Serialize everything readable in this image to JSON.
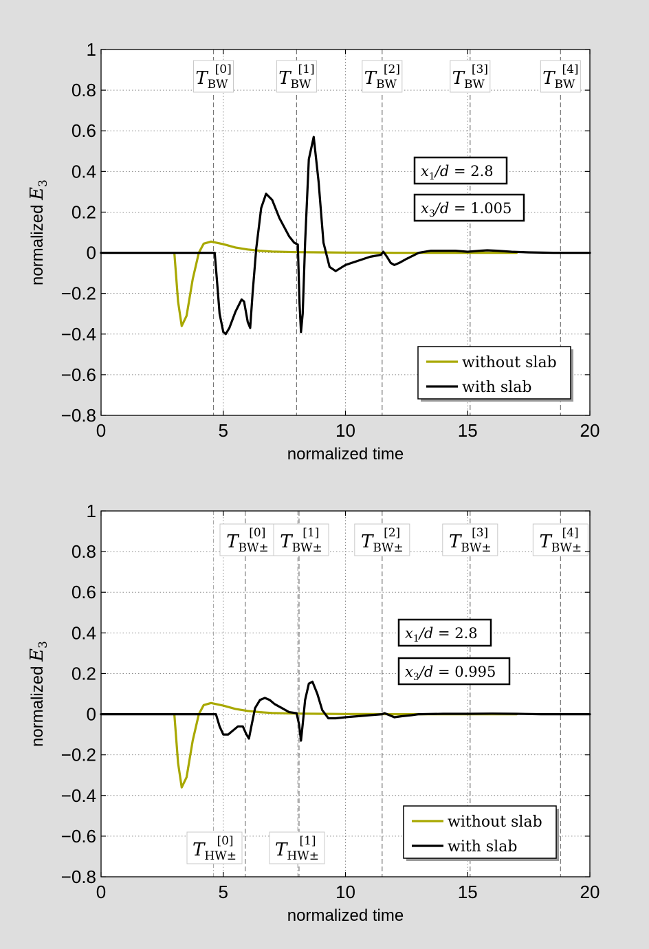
{
  "colors": {
    "background": "#dedede",
    "axes_background": "#ffffff",
    "without_slab": "#a8a800",
    "with_slab": "#000000"
  },
  "chart_data": [
    {
      "type": "line",
      "xlabel": "normalized time",
      "ylabel": "normalized E3",
      "xlim": [
        0,
        20
      ],
      "ylim": [
        -0.8,
        1
      ],
      "xticks": [
        "0",
        "5",
        "10",
        "15",
        "20"
      ],
      "yticks": [
        "1",
        "0.8",
        "0.6",
        "0.4",
        "0.2",
        "0",
        "−0.2",
        "−0.4",
        "−0.6",
        "−0.8"
      ],
      "grid": true,
      "legend_position": "bottom-right",
      "annotations": [
        "x1/d = 2.8",
        "x3/d = 1.005"
      ],
      "markers": [
        {
          "label": "T_BW^[0]",
          "x": 4.6
        },
        {
          "label": "T_BW^[1]",
          "x": 8.0
        },
        {
          "label": "T_BW^[2]",
          "x": 11.5
        },
        {
          "label": "T_BW^[3]",
          "x": 15.1
        },
        {
          "label": "T_BW^[4]",
          "x": 18.8
        }
      ],
      "series": [
        {
          "name": "without slab",
          "x": [
            3.0,
            3.15,
            3.3,
            3.5,
            3.75,
            4.0,
            4.2,
            4.5,
            5.0,
            5.5,
            6.0,
            6.5,
            7.0,
            8.0,
            9.0,
            10.0,
            11.0,
            12.0,
            13.0,
            14.0,
            15.0,
            16.0,
            17.0
          ],
          "y": [
            0,
            -0.24,
            -0.36,
            -0.31,
            -0.13,
            0.0,
            0.045,
            0.055,
            0.042,
            0.026,
            0.016,
            0.01,
            0.006,
            0.003,
            0.002,
            0.001,
            0.001,
            0.0,
            0.0,
            0.0,
            0.0,
            0.0,
            0.0
          ]
        },
        {
          "name": "with slab",
          "x": [
            0,
            4.65,
            4.75,
            4.85,
            5.0,
            5.1,
            5.25,
            5.5,
            5.75,
            5.85,
            6.0,
            6.1,
            6.2,
            6.35,
            6.55,
            6.75,
            7.0,
            7.3,
            7.7,
            7.9,
            8.05,
            8.12,
            8.18,
            8.25,
            8.35,
            8.5,
            8.7,
            8.9,
            9.1,
            9.35,
            9.6,
            10.0,
            10.5,
            11.0,
            11.45,
            11.55,
            11.7,
            11.85,
            12.0,
            12.2,
            12.5,
            13.0,
            13.5,
            14.0,
            14.5,
            15.0,
            15.5,
            15.8,
            16.2,
            16.8,
            17.5,
            18.5,
            20.0
          ],
          "y": [
            0,
            0,
            -0.15,
            -0.3,
            -0.39,
            -0.4,
            -0.37,
            -0.29,
            -0.23,
            -0.24,
            -0.34,
            -0.37,
            -0.2,
            0.02,
            0.22,
            0.29,
            0.26,
            0.17,
            0.08,
            0.05,
            0.04,
            -0.25,
            -0.39,
            -0.3,
            0.05,
            0.46,
            0.57,
            0.35,
            0.05,
            -0.07,
            -0.09,
            -0.06,
            -0.04,
            -0.02,
            -0.01,
            0.005,
            -0.02,
            -0.05,
            -0.06,
            -0.05,
            -0.03,
            0.0,
            0.01,
            0.01,
            0.01,
            0.005,
            0.01,
            0.012,
            0.01,
            0.005,
            0.002,
            0.0,
            0.0
          ]
        }
      ]
    },
    {
      "type": "line",
      "xlabel": "normalized time",
      "ylabel": "normalized E3",
      "xlim": [
        0,
        20
      ],
      "ylim": [
        -0.8,
        1
      ],
      "xticks": [
        "0",
        "5",
        "10",
        "15",
        "20"
      ],
      "yticks": [
        "1",
        "0.8",
        "0.6",
        "0.4",
        "0.2",
        "0",
        "−0.2",
        "−0.4",
        "−0.6",
        "−0.8"
      ],
      "grid": true,
      "legend_position": "bottom-right",
      "annotations": [
        "x1/d = 2.8",
        "x3/d = 0.995"
      ],
      "markers": [
        {
          "label": "T_BW±^[0]",
          "x": 5.9
        },
        {
          "label": "T_BW±^[1]",
          "x": 8.1
        },
        {
          "label": "T_BW±^[2]",
          "x": 11.5
        },
        {
          "label": "T_BW±^[3]",
          "x": 15.1
        },
        {
          "label": "T_BW±^[4]",
          "x": 18.8
        },
        {
          "label": "T_HW±^[0]",
          "x": 4.6
        },
        {
          "label": "T_HW±^[1]",
          "x": 8.05
        }
      ],
      "series": [
        {
          "name": "without slab",
          "x": [
            3.0,
            3.15,
            3.3,
            3.5,
            3.75,
            4.0,
            4.2,
            4.5,
            5.0,
            5.5,
            6.0,
            6.5,
            7.0,
            8.0,
            9.0,
            10.0,
            11.0,
            12.0,
            13.0,
            14.0,
            15.0,
            16.0,
            17.0
          ],
          "y": [
            0,
            -0.24,
            -0.36,
            -0.31,
            -0.13,
            0.0,
            0.045,
            0.055,
            0.042,
            0.026,
            0.016,
            0.01,
            0.006,
            0.003,
            0.002,
            0.001,
            0.001,
            0.0,
            0.0,
            0.0,
            0.0,
            0.0,
            0.0
          ]
        },
        {
          "name": "with slab",
          "x": [
            0,
            4.7,
            4.85,
            5.0,
            5.2,
            5.4,
            5.6,
            5.8,
            5.95,
            6.05,
            6.15,
            6.3,
            6.5,
            6.7,
            6.9,
            7.1,
            7.4,
            7.7,
            8.0,
            8.1,
            8.18,
            8.25,
            8.35,
            8.5,
            8.65,
            8.85,
            9.05,
            9.3,
            9.6,
            10.0,
            10.5,
            11.0,
            11.5,
            11.6,
            11.8,
            12.0,
            12.3,
            12.7,
            13.0,
            14.0,
            15.0,
            16.0,
            17.0,
            18.0,
            20.0
          ],
          "y": [
            0,
            0,
            -0.06,
            -0.1,
            -0.1,
            -0.08,
            -0.06,
            -0.06,
            -0.1,
            -0.12,
            -0.06,
            0.03,
            0.07,
            0.08,
            0.07,
            0.05,
            0.03,
            0.01,
            0.005,
            -0.05,
            -0.13,
            -0.05,
            0.07,
            0.15,
            0.16,
            0.1,
            0.02,
            -0.02,
            -0.02,
            -0.015,
            -0.01,
            -0.005,
            0.0,
            0.005,
            -0.005,
            -0.015,
            -0.01,
            -0.005,
            0.0,
            0.002,
            0.002,
            0.003,
            0.002,
            0.0,
            0.0
          ]
        }
      ]
    }
  ]
}
